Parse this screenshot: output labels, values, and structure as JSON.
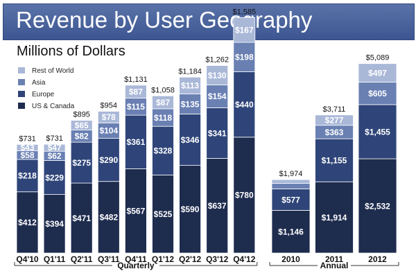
{
  "header": {
    "title": "Revenue by User Geography"
  },
  "chart_data": {
    "type": "bar",
    "stacked": true,
    "title": "Revenue by User Geography",
    "subtitle": "Millions of Dollars",
    "legend_position": "top-left",
    "colors": {
      "us_canada": "#1e2c4e",
      "europe": "#2f4579",
      "asia": "#6a80b3",
      "rest_of_world": "#aab8d8"
    },
    "groups": [
      {
        "label": "Quarterly",
        "categories": [
          "Q4'10",
          "Q1'11",
          "Q2'11",
          "Q3'11",
          "Q4'11",
          "Q1'12",
          "Q2'12",
          "Q3'12",
          "Q4'12"
        ],
        "series": [
          {
            "name": "US & Canada",
            "values": [
              412,
              394,
              471,
              482,
              567,
              525,
              590,
              637,
              780
            ],
            "labels": [
              "$412",
              "$394",
              "$471",
              "$482",
              "$567",
              "$525",
              "$590",
              "$637",
              "$780"
            ]
          },
          {
            "name": "Europe",
            "values": [
              218,
              229,
              275,
              290,
              361,
              328,
              346,
              341,
              440
            ],
            "labels": [
              "$218",
              "$229",
              "$275",
              "$290",
              "$361",
              "$328",
              "$346",
              "$341",
              "$440"
            ]
          },
          {
            "name": "Asia",
            "values": [
              58,
              62,
              82,
              104,
              115,
              118,
              135,
              154,
              198
            ],
            "labels": [
              "$58",
              "$62",
              "$82",
              "$104",
              "$115",
              "$118",
              "$135",
              "$154",
              "$198"
            ]
          },
          {
            "name": "Rest of World",
            "values": [
              43,
              47,
              65,
              78,
              87,
              87,
              113,
              130,
              167
            ],
            "labels": [
              "$43",
              "$47",
              "$65",
              "$78",
              "$87",
              "$87",
              "$113",
              "$130",
              "$167"
            ]
          }
        ],
        "totals": [
          "$731",
          "$731",
          "$895",
          "$954",
          "$1,131",
          "$1,058",
          "$1,184",
          "$1,262",
          "$1,585"
        ]
      },
      {
        "label": "Annual",
        "categories": [
          "2010",
          "2011",
          "2012"
        ],
        "series": [
          {
            "name": "US & Canada",
            "values": [
              1146,
              1914,
              2532
            ],
            "labels": [
              "$1,146",
              "$1,914",
              "$2,532"
            ]
          },
          {
            "name": "Europe",
            "values": [
              577,
              1155,
              1455
            ],
            "labels": [
              "$577",
              "$1,155",
              "$1,455"
            ]
          },
          {
            "name": "Asia",
            "values": [
              148,
              363,
              605
            ],
            "labels": [
              "$148",
              "$363",
              "$605"
            ]
          },
          {
            "name": "Rest of World",
            "values": [
              101,
              277,
              497
            ],
            "labels": [
              "$101",
              "$277",
              "$497"
            ]
          }
        ],
        "totals": [
          "$1,974",
          "$3,711",
          "$5,089"
        ]
      }
    ]
  }
}
